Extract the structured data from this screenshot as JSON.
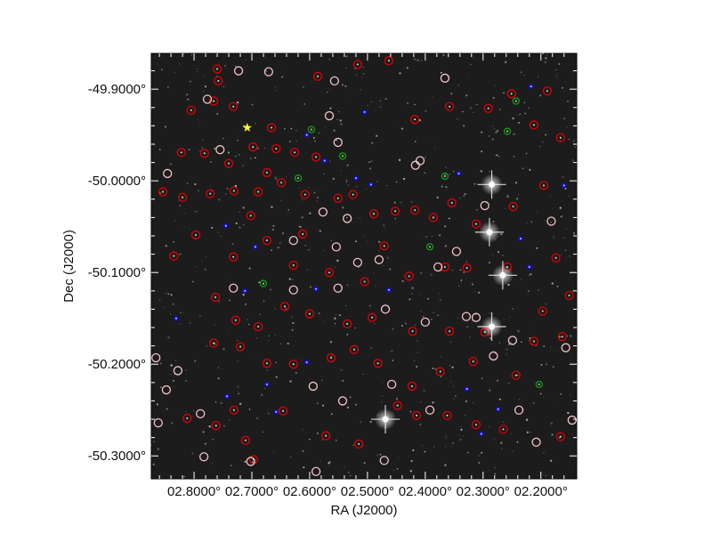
{
  "chart_data": {
    "type": "scatter",
    "title": "",
    "xlabel": "RA (J2000)",
    "ylabel": "Dec (J2000)",
    "xlim": [
      2.874,
      2.138
    ],
    "ylim": [
      -50.325,
      -49.861
    ],
    "x_ticks": [
      2.8,
      2.7,
      2.6,
      2.5,
      2.4,
      2.3,
      2.2
    ],
    "x_tick_labels": [
      "02.8000°",
      "02.7000°",
      "02.6000°",
      "02.5000°",
      "02.4000°",
      "02.3000°",
      "02.2000°"
    ],
    "y_ticks": [
      -49.9,
      -50.0,
      -50.1,
      -50.2,
      -50.3
    ],
    "y_tick_labels": [
      "-49.9000°",
      "-50.0000°",
      "-50.1000°",
      "-50.2000°",
      "-50.3000°"
    ],
    "grid": false,
    "background": "grayscale sky image",
    "colors": {
      "red": "#e00000",
      "pink": "#f4c2c8",
      "blue": "#1010d0",
      "green": "#10a010",
      "yellow": "#ffff30"
    },
    "series": [
      {
        "marker": "red-circle",
        "points": [
          [
            2.76,
            -49.878
          ],
          [
            2.758,
            -49.891
          ],
          [
            2.805,
            -49.923
          ],
          [
            2.766,
            -49.913
          ],
          [
            2.732,
            -49.919
          ],
          [
            2.822,
            -49.969
          ],
          [
            2.782,
            -49.97
          ],
          [
            2.74,
            -49.981
          ],
          [
            2.698,
            -49.963
          ],
          [
            2.658,
            -49.965
          ],
          [
            2.626,
            -49.969
          ],
          [
            2.589,
            -49.974
          ],
          [
            2.674,
            -49.991
          ],
          [
            2.649,
            -50.002
          ],
          [
            2.608,
            -50.015
          ],
          [
            2.551,
            -50.019
          ],
          [
            2.525,
            -50.015
          ],
          [
            2.489,
            -50.036
          ],
          [
            2.452,
            -50.033
          ],
          [
            2.418,
            -50.032
          ],
          [
            2.386,
            -50.04
          ],
          [
            2.354,
            -50.024
          ],
          [
            2.312,
            -50.047
          ],
          [
            2.248,
            -50.028
          ],
          [
            2.195,
            -50.005
          ],
          [
            2.854,
            -50.012
          ],
          [
            2.82,
            -50.018
          ],
          [
            2.772,
            -50.014
          ],
          [
            2.731,
            -50.011
          ],
          [
            2.689,
            -50.012
          ],
          [
            2.835,
            -50.082
          ],
          [
            2.797,
            -50.059
          ],
          [
            2.732,
            -50.083
          ],
          [
            2.702,
            -50.038
          ],
          [
            2.674,
            -50.065
          ],
          [
            2.628,
            -50.092
          ],
          [
            2.566,
            -50.1
          ],
          [
            2.505,
            -50.11
          ],
          [
            2.428,
            -50.104
          ],
          [
            2.366,
            -50.094
          ],
          [
            2.328,
            -50.095
          ],
          [
            2.258,
            -50.094
          ],
          [
            2.174,
            -50.084
          ],
          [
            2.151,
            -50.125
          ],
          [
            2.197,
            -50.142
          ],
          [
            2.763,
            -50.127
          ],
          [
            2.728,
            -50.152
          ],
          [
            2.689,
            -50.159
          ],
          [
            2.643,
            -50.137
          ],
          [
            2.6,
            -50.145
          ],
          [
            2.535,
            -50.156
          ],
          [
            2.492,
            -50.149
          ],
          [
            2.422,
            -50.164
          ],
          [
            2.358,
            -50.164
          ],
          [
            2.297,
            -50.165
          ],
          [
            2.212,
            -50.175
          ],
          [
            2.163,
            -50.17
          ],
          [
            2.766,
            -50.177
          ],
          [
            2.72,
            -50.181
          ],
          [
            2.674,
            -50.199
          ],
          [
            2.628,
            -50.2
          ],
          [
            2.563,
            -50.193
          ],
          [
            2.523,
            -50.184
          ],
          [
            2.482,
            -50.199
          ],
          [
            2.423,
            -50.224
          ],
          [
            2.374,
            -50.208
          ],
          [
            2.317,
            -50.197
          ],
          [
            2.243,
            -50.212
          ],
          [
            2.812,
            -50.259
          ],
          [
            2.762,
            -50.267
          ],
          [
            2.731,
            -50.25
          ],
          [
            2.711,
            -50.283
          ],
          [
            2.697,
            -50.304
          ],
          [
            2.646,
            -50.251
          ],
          [
            2.572,
            -50.278
          ],
          [
            2.515,
            -50.287
          ],
          [
            2.448,
            -50.245
          ],
          [
            2.415,
            -50.256
          ],
          [
            2.362,
            -50.256
          ],
          [
            2.312,
            -50.266
          ],
          [
            2.265,
            -50.271
          ],
          [
            2.166,
            -50.279
          ],
          [
            2.666,
            -49.942
          ],
          [
            2.586,
            -49.886
          ],
          [
            2.517,
            -49.873
          ],
          [
            2.463,
            -49.869
          ],
          [
            2.418,
            -49.933
          ],
          [
            2.358,
            -49.919
          ],
          [
            2.291,
            -49.921
          ],
          [
            2.251,
            -49.905
          ],
          [
            2.189,
            -49.902
          ],
          [
            2.166,
            -49.953
          ],
          [
            2.212,
            -49.939
          ],
          [
            2.612,
            -50.058
          ],
          [
            2.471,
            -50.071
          ]
        ]
      },
      {
        "marker": "pink-circle",
        "points": [
          [
            2.723,
            -49.88
          ],
          [
            2.777,
            -49.911
          ],
          [
            2.755,
            -49.966
          ],
          [
            2.671,
            -49.881
          ],
          [
            2.557,
            -49.891
          ],
          [
            2.566,
            -49.929
          ],
          [
            2.551,
            -49.958
          ],
          [
            2.846,
            -49.992
          ],
          [
            2.577,
            -50.034
          ],
          [
            2.535,
            -50.041
          ],
          [
            2.628,
            -50.065
          ],
          [
            2.554,
            -50.072
          ],
          [
            2.517,
            -50.089
          ],
          [
            2.48,
            -50.086
          ],
          [
            2.378,
            -50.094
          ],
          [
            2.346,
            -50.077
          ],
          [
            2.732,
            -50.117
          ],
          [
            2.628,
            -50.119
          ],
          [
            2.551,
            -50.117
          ],
          [
            2.469,
            -50.14
          ],
          [
            2.4,
            -50.154
          ],
          [
            2.329,
            -50.148
          ],
          [
            2.312,
            -50.149
          ],
          [
            2.282,
            -50.191
          ],
          [
            2.249,
            -50.174
          ],
          [
            2.157,
            -50.182
          ],
          [
            2.866,
            -50.193
          ],
          [
            2.828,
            -50.207
          ],
          [
            2.848,
            -50.228
          ],
          [
            2.789,
            -50.254
          ],
          [
            2.594,
            -50.224
          ],
          [
            2.543,
            -50.24
          ],
          [
            2.458,
            -50.222
          ],
          [
            2.392,
            -50.25
          ],
          [
            2.238,
            -50.25
          ],
          [
            2.208,
            -50.285
          ],
          [
            2.146,
            -50.261
          ],
          [
            2.862,
            -50.264
          ],
          [
            2.783,
            -50.301
          ],
          [
            2.702,
            -50.306
          ],
          [
            2.589,
            -50.317
          ],
          [
            2.471,
            -50.305
          ],
          [
            2.417,
            -49.983
          ],
          [
            2.409,
            -49.978
          ],
          [
            2.366,
            -49.888
          ],
          [
            2.297,
            -50.027
          ],
          [
            2.182,
            -50.044
          ]
        ]
      },
      {
        "marker": "blue-dot",
        "points": [
          [
            2.505,
            -49.925
          ],
          [
            2.605,
            -49.95
          ],
          [
            2.574,
            -49.978
          ],
          [
            2.52,
            -49.997
          ],
          [
            2.494,
            -50.004
          ],
          [
            2.342,
            -49.992
          ],
          [
            2.745,
            -50.049
          ],
          [
            2.694,
            -50.072
          ],
          [
            2.712,
            -50.12
          ],
          [
            2.589,
            -50.118
          ],
          [
            2.463,
            -50.119
          ],
          [
            2.831,
            -50.15
          ],
          [
            2.605,
            -50.198
          ],
          [
            2.674,
            -50.222
          ],
          [
            2.743,
            -50.235
          ],
          [
            2.658,
            -50.252
          ],
          [
            2.328,
            -50.227
          ],
          [
            2.274,
            -50.249
          ],
          [
            2.303,
            -50.276
          ],
          [
            2.235,
            -50.063
          ],
          [
            2.22,
            -50.094
          ],
          [
            2.217,
            -49.897
          ],
          [
            2.16,
            -50.005
          ]
        ]
      },
      {
        "marker": "green-circle",
        "points": [
          [
            2.597,
            -49.944
          ],
          [
            2.543,
            -49.973
          ],
          [
            2.62,
            -49.997
          ],
          [
            2.366,
            -49.995
          ],
          [
            2.243,
            -49.913
          ],
          [
            2.392,
            -50.072
          ],
          [
            2.68,
            -50.112
          ],
          [
            2.203,
            -50.222
          ],
          [
            2.258,
            -49.946
          ]
        ]
      },
      {
        "marker": "yellow-star",
        "points": [
          [
            2.708,
            -49.942
          ]
        ]
      },
      {
        "marker": "bright-star",
        "points": [
          [
            2.285,
            -50.004
          ],
          [
            2.289,
            -50.056
          ],
          [
            2.285,
            -50.159
          ],
          [
            2.469,
            -50.26
          ],
          [
            2.266,
            -50.103
          ]
        ]
      }
    ]
  }
}
